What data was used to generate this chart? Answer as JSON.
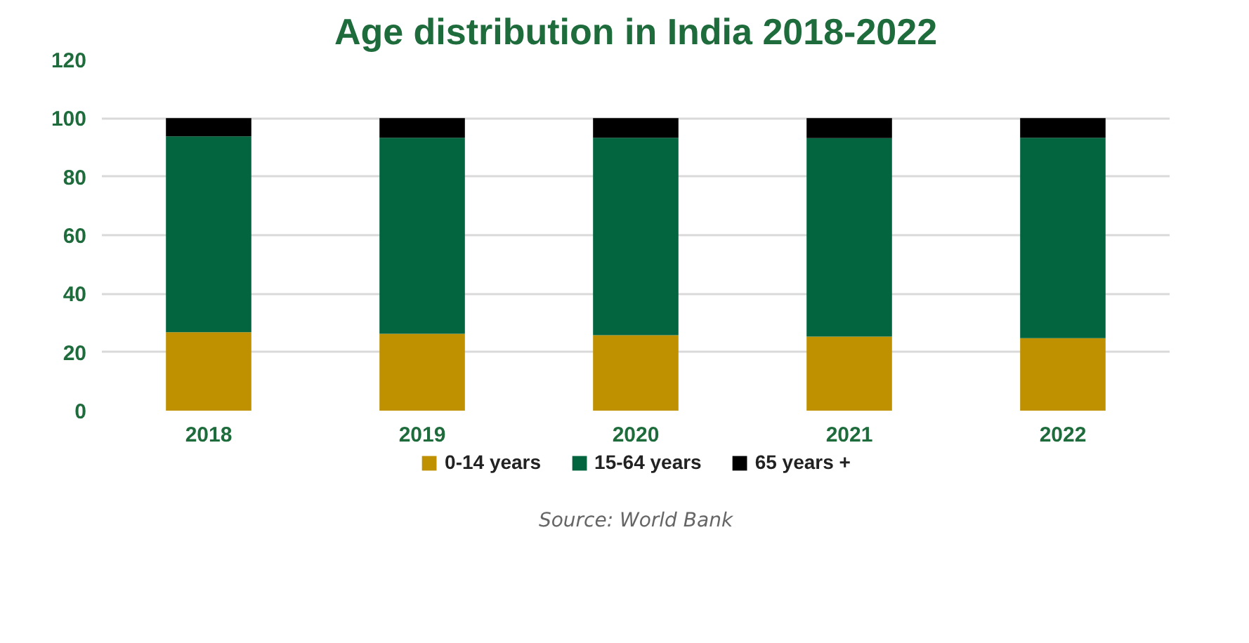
{
  "chart_data": {
    "type": "bar",
    "stacked": true,
    "title": "Age distribution in India 2018-2022",
    "categories": [
      "2018",
      "2019",
      "2020",
      "2021",
      "2022"
    ],
    "series": [
      {
        "name": "0-14 years",
        "color": "#bf9000",
        "values": [
          26.8,
          26.3,
          25.8,
          25.3,
          24.8
        ]
      },
      {
        "name": "15-64 years",
        "color": "#036440",
        "values": [
          67.0,
          67.0,
          67.5,
          67.9,
          68.5
        ]
      },
      {
        "name": "65 years +",
        "color": "#000000",
        "values": [
          6.2,
          6.7,
          6.7,
          6.8,
          6.7
        ]
      }
    ],
    "ylim": [
      0,
      120
    ],
    "yticks": [
      0,
      20,
      40,
      60,
      80,
      100,
      120
    ],
    "grid": "y",
    "legend": "bottom",
    "annotations": [
      "Source: World Bank"
    ]
  }
}
